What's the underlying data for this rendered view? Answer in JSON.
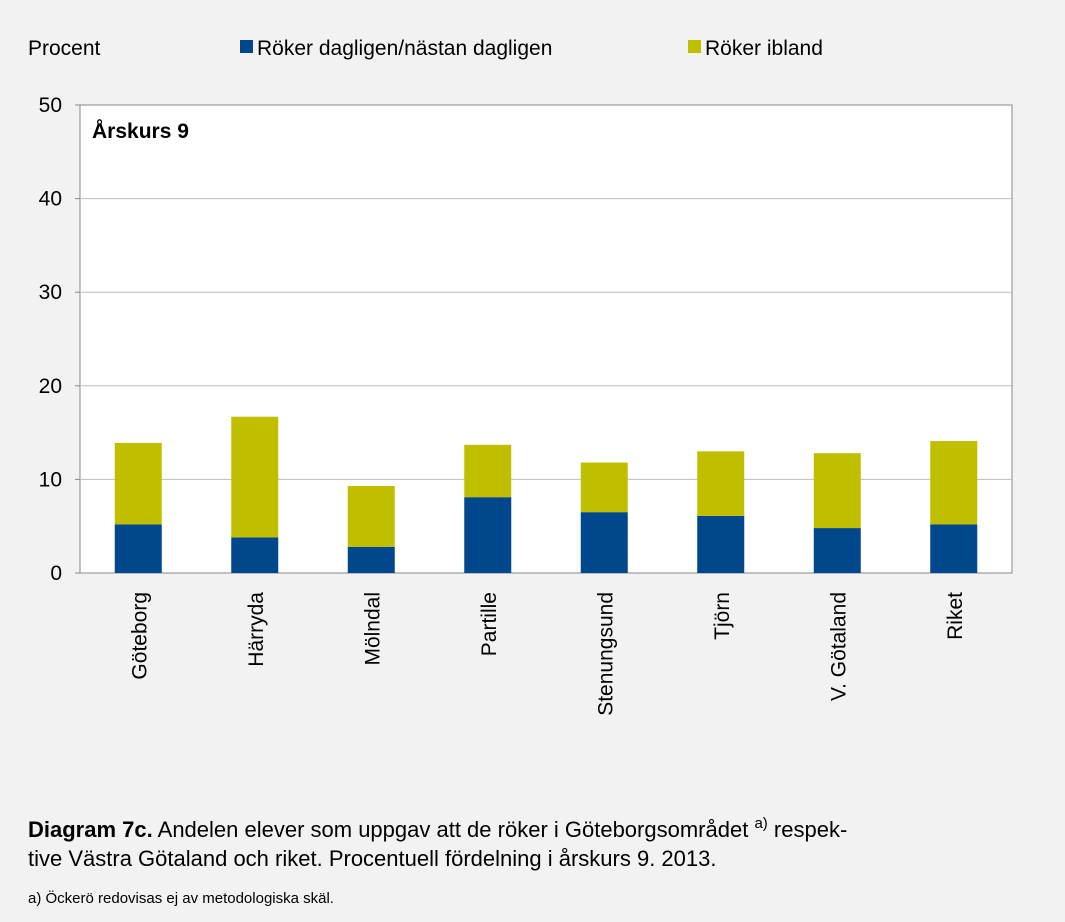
{
  "chart_data": {
    "type": "stacked_bar",
    "y_axis_label": "Procent",
    "annotation": "Årskurs 9",
    "categories": [
      "Göteborg",
      "Härryda",
      "Mölndal",
      "Partille",
      "Stenungsund",
      "Tjörn",
      "V. Götaland",
      "Riket"
    ],
    "series": [
      {
        "name": "Röker dagligen/nästan dagligen",
        "color": "#00478b",
        "values": [
          5.2,
          3.8,
          2.8,
          8.1,
          6.5,
          6.1,
          4.8,
          5.2
        ]
      },
      {
        "name": "Röker ibland",
        "color": "#bfbf00",
        "values": [
          8.7,
          12.9,
          6.5,
          5.6,
          5.3,
          6.9,
          8.0,
          8.9
        ]
      }
    ],
    "ylim": [
      0,
      50
    ],
    "yticks": [
      0,
      10,
      20,
      30,
      40,
      50
    ],
    "grid": true,
    "legend": "top"
  },
  "caption": {
    "label": "Diagram 7c.",
    "text": "Andelen elever som uppgav att de röker i Göteborgsområdet",
    "note_mark": "a)",
    "text_end": "respek-",
    "line2": "tive Västra Götaland och riket. Procentuell fördelning i årskurs 9. 2013."
  },
  "footnote": "a) Öckerö redovisas ej av metodologiska skäl."
}
